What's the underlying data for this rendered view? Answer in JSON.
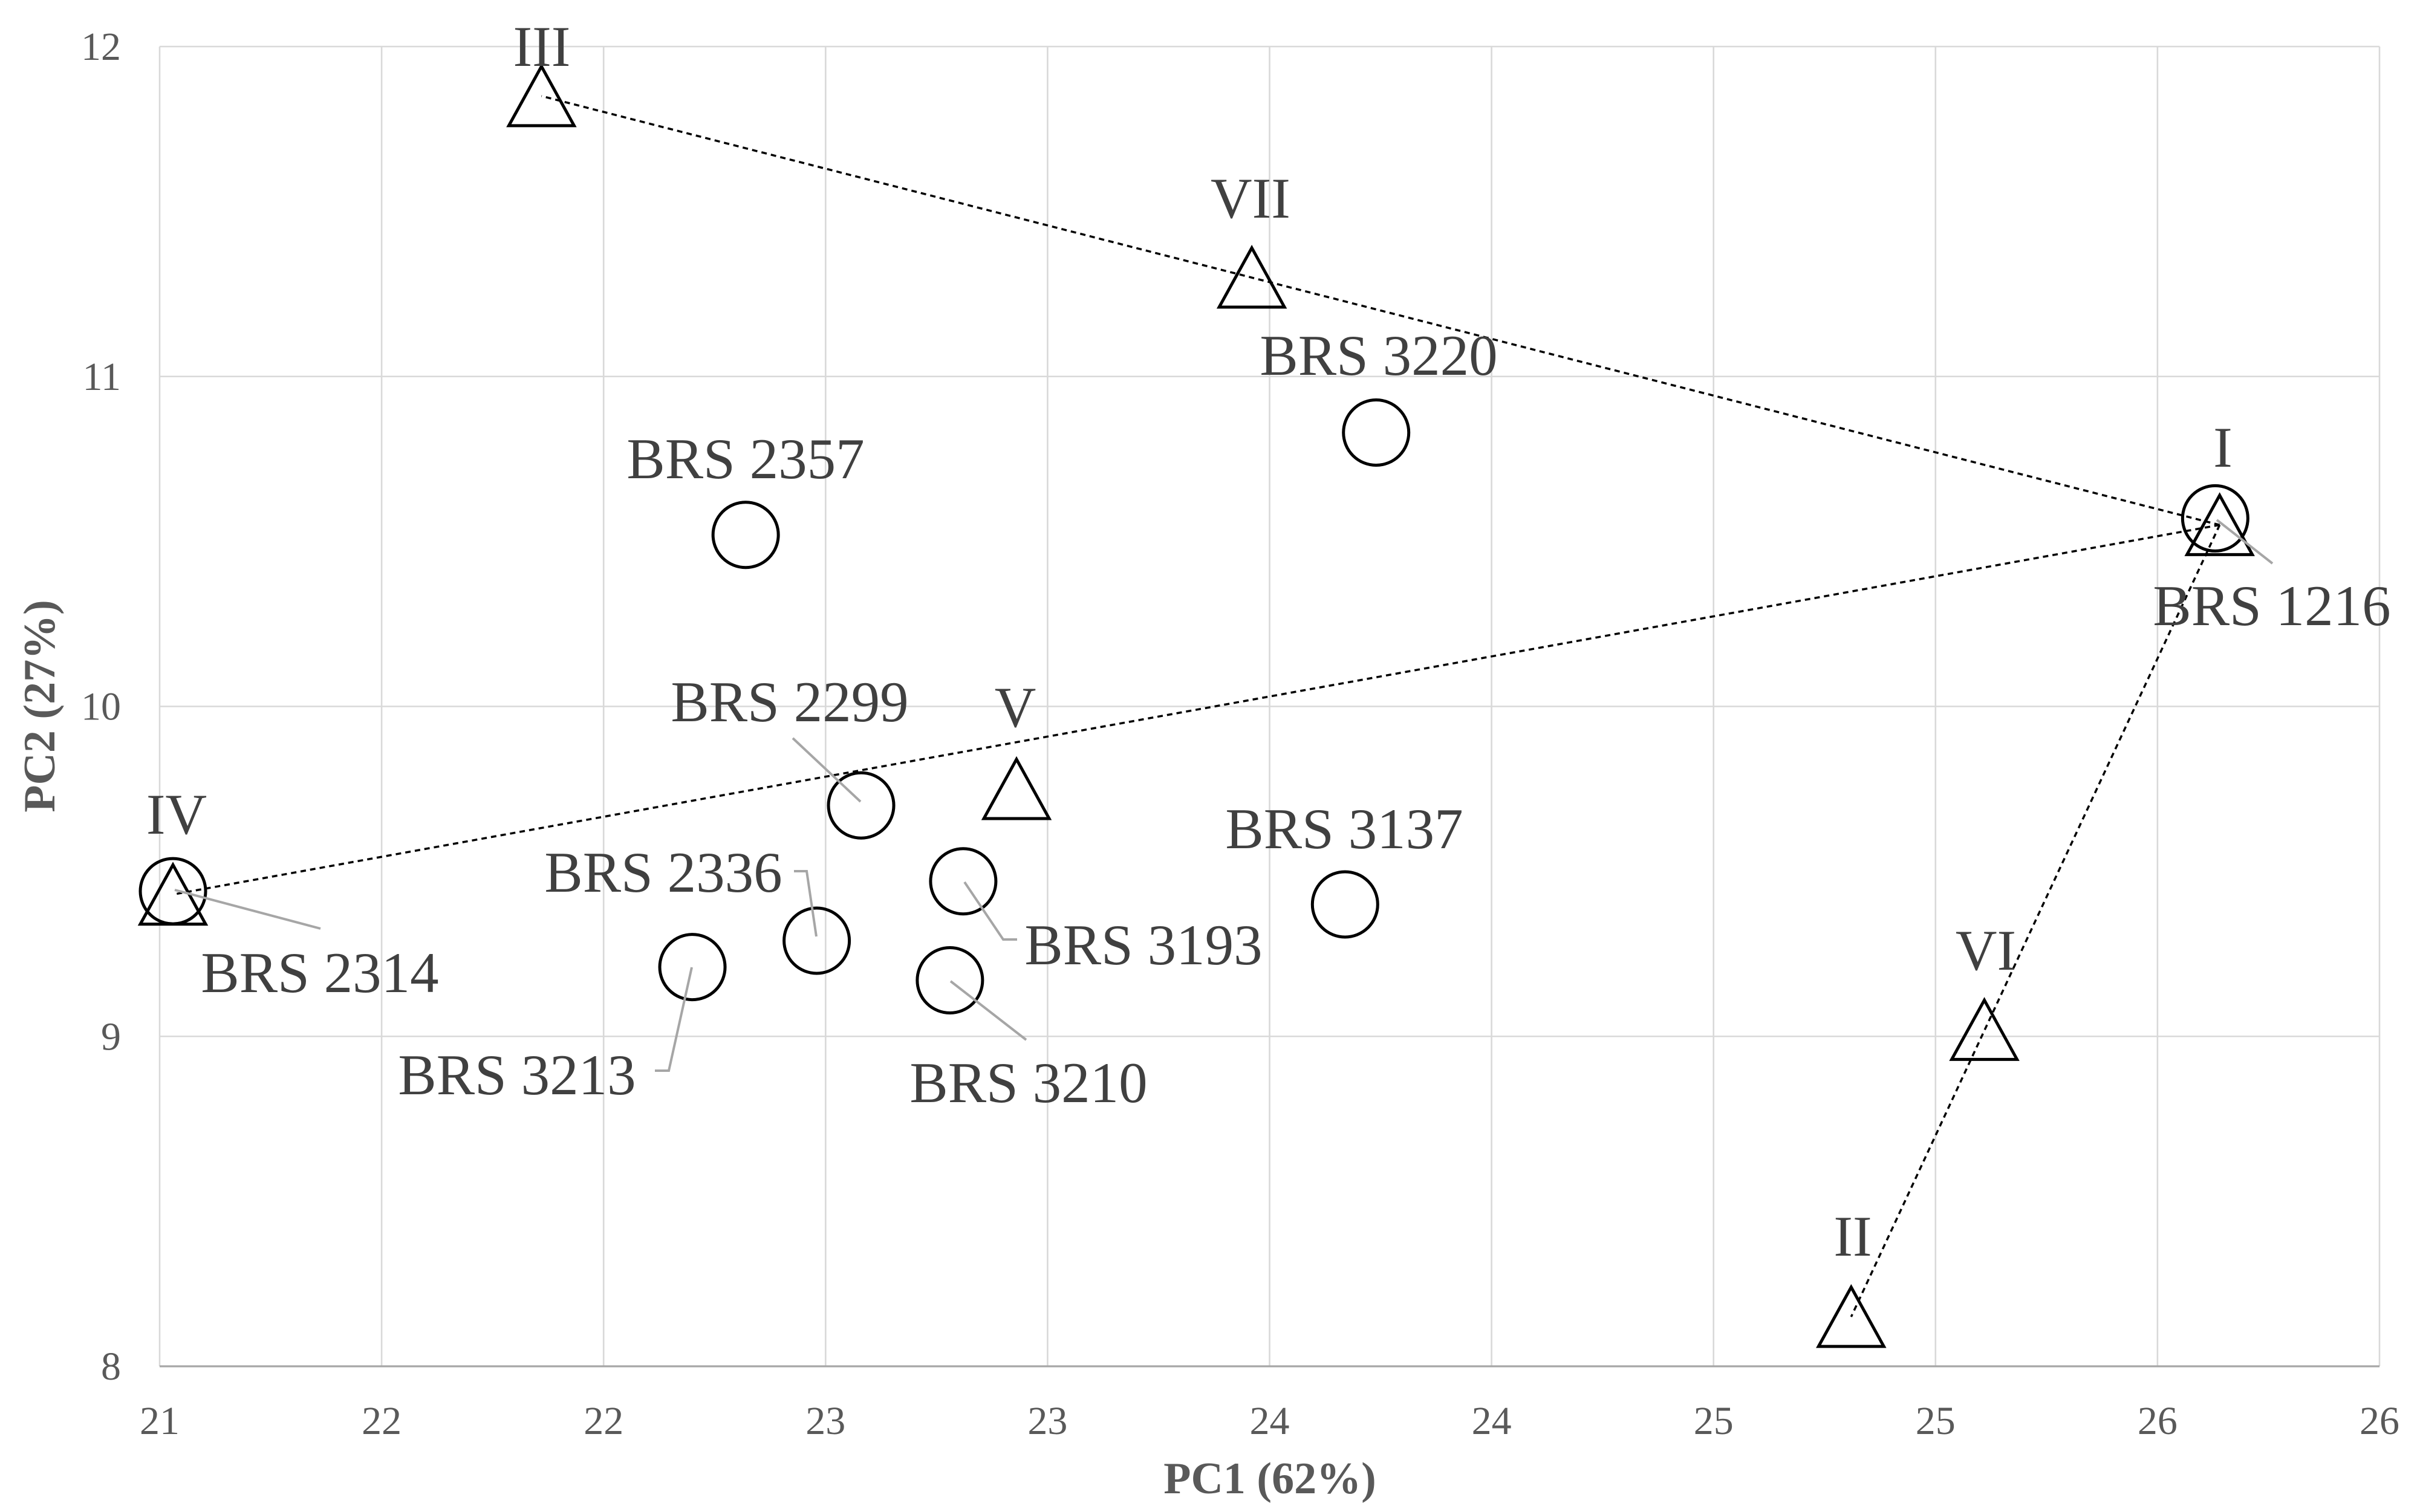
{
  "chart_data": {
    "type": "scatter",
    "xlabel": "PC1 (62%)",
    "ylabel": "PC2 (27%)",
    "xlim": [
      21,
      26
    ],
    "ylim": [
      8,
      12
    ],
    "grid": true,
    "x_ticks": [
      21,
      21.5,
      22,
      22.5,
      23,
      23.5,
      24,
      24.5,
      25,
      25.5,
      26
    ],
    "x_tick_labels": [
      "21",
      "22",
      "22",
      "23",
      "23",
      "24",
      "24",
      "25",
      "25",
      "26",
      "26"
    ],
    "y_ticks": [
      8,
      9,
      10,
      11,
      12
    ],
    "y_tick_labels": [
      "8",
      "9",
      "10",
      "11",
      "12"
    ],
    "series": [
      {
        "marker": "triangle",
        "points": [
          {
            "label": "I",
            "x": 25.64,
            "y": 10.55
          },
          {
            "label": "II",
            "x": 24.81,
            "y": 8.15
          },
          {
            "label": "III",
            "x": 21.86,
            "y": 11.85
          },
          {
            "label": "IV",
            "x": 21.03,
            "y": 9.43
          },
          {
            "label": "V",
            "x": 22.93,
            "y": 9.75
          },
          {
            "label": "VI",
            "x": 25.11,
            "y": 9.02
          },
          {
            "label": "VII",
            "x": 23.46,
            "y": 11.3
          }
        ]
      },
      {
        "marker": "circle",
        "points": [
          {
            "label": "BRS 3220",
            "x": 23.74,
            "y": 10.83
          },
          {
            "label": "BRS 2357",
            "x": 22.32,
            "y": 10.52
          },
          {
            "label": "BRS 1216",
            "x": 25.63,
            "y": 10.57
          },
          {
            "label": "BRS 2299",
            "x": 22.58,
            "y": 9.7
          },
          {
            "label": "BRS 2314",
            "x": 21.03,
            "y": 9.44
          },
          {
            "label": "BRS 3193",
            "x": 22.81,
            "y": 9.47
          },
          {
            "label": "BRS 3137",
            "x": 23.67,
            "y": 9.4
          },
          {
            "label": "BRS 2336",
            "x": 22.48,
            "y": 9.29
          },
          {
            "label": "BRS 3213",
            "x": 22.2,
            "y": 9.21
          },
          {
            "label": "BRS 3210",
            "x": 22.78,
            "y": 9.17
          }
        ]
      }
    ],
    "connections": [
      [
        "I",
        "III"
      ],
      [
        "I",
        "IV"
      ],
      [
        "I",
        "II"
      ]
    ]
  }
}
